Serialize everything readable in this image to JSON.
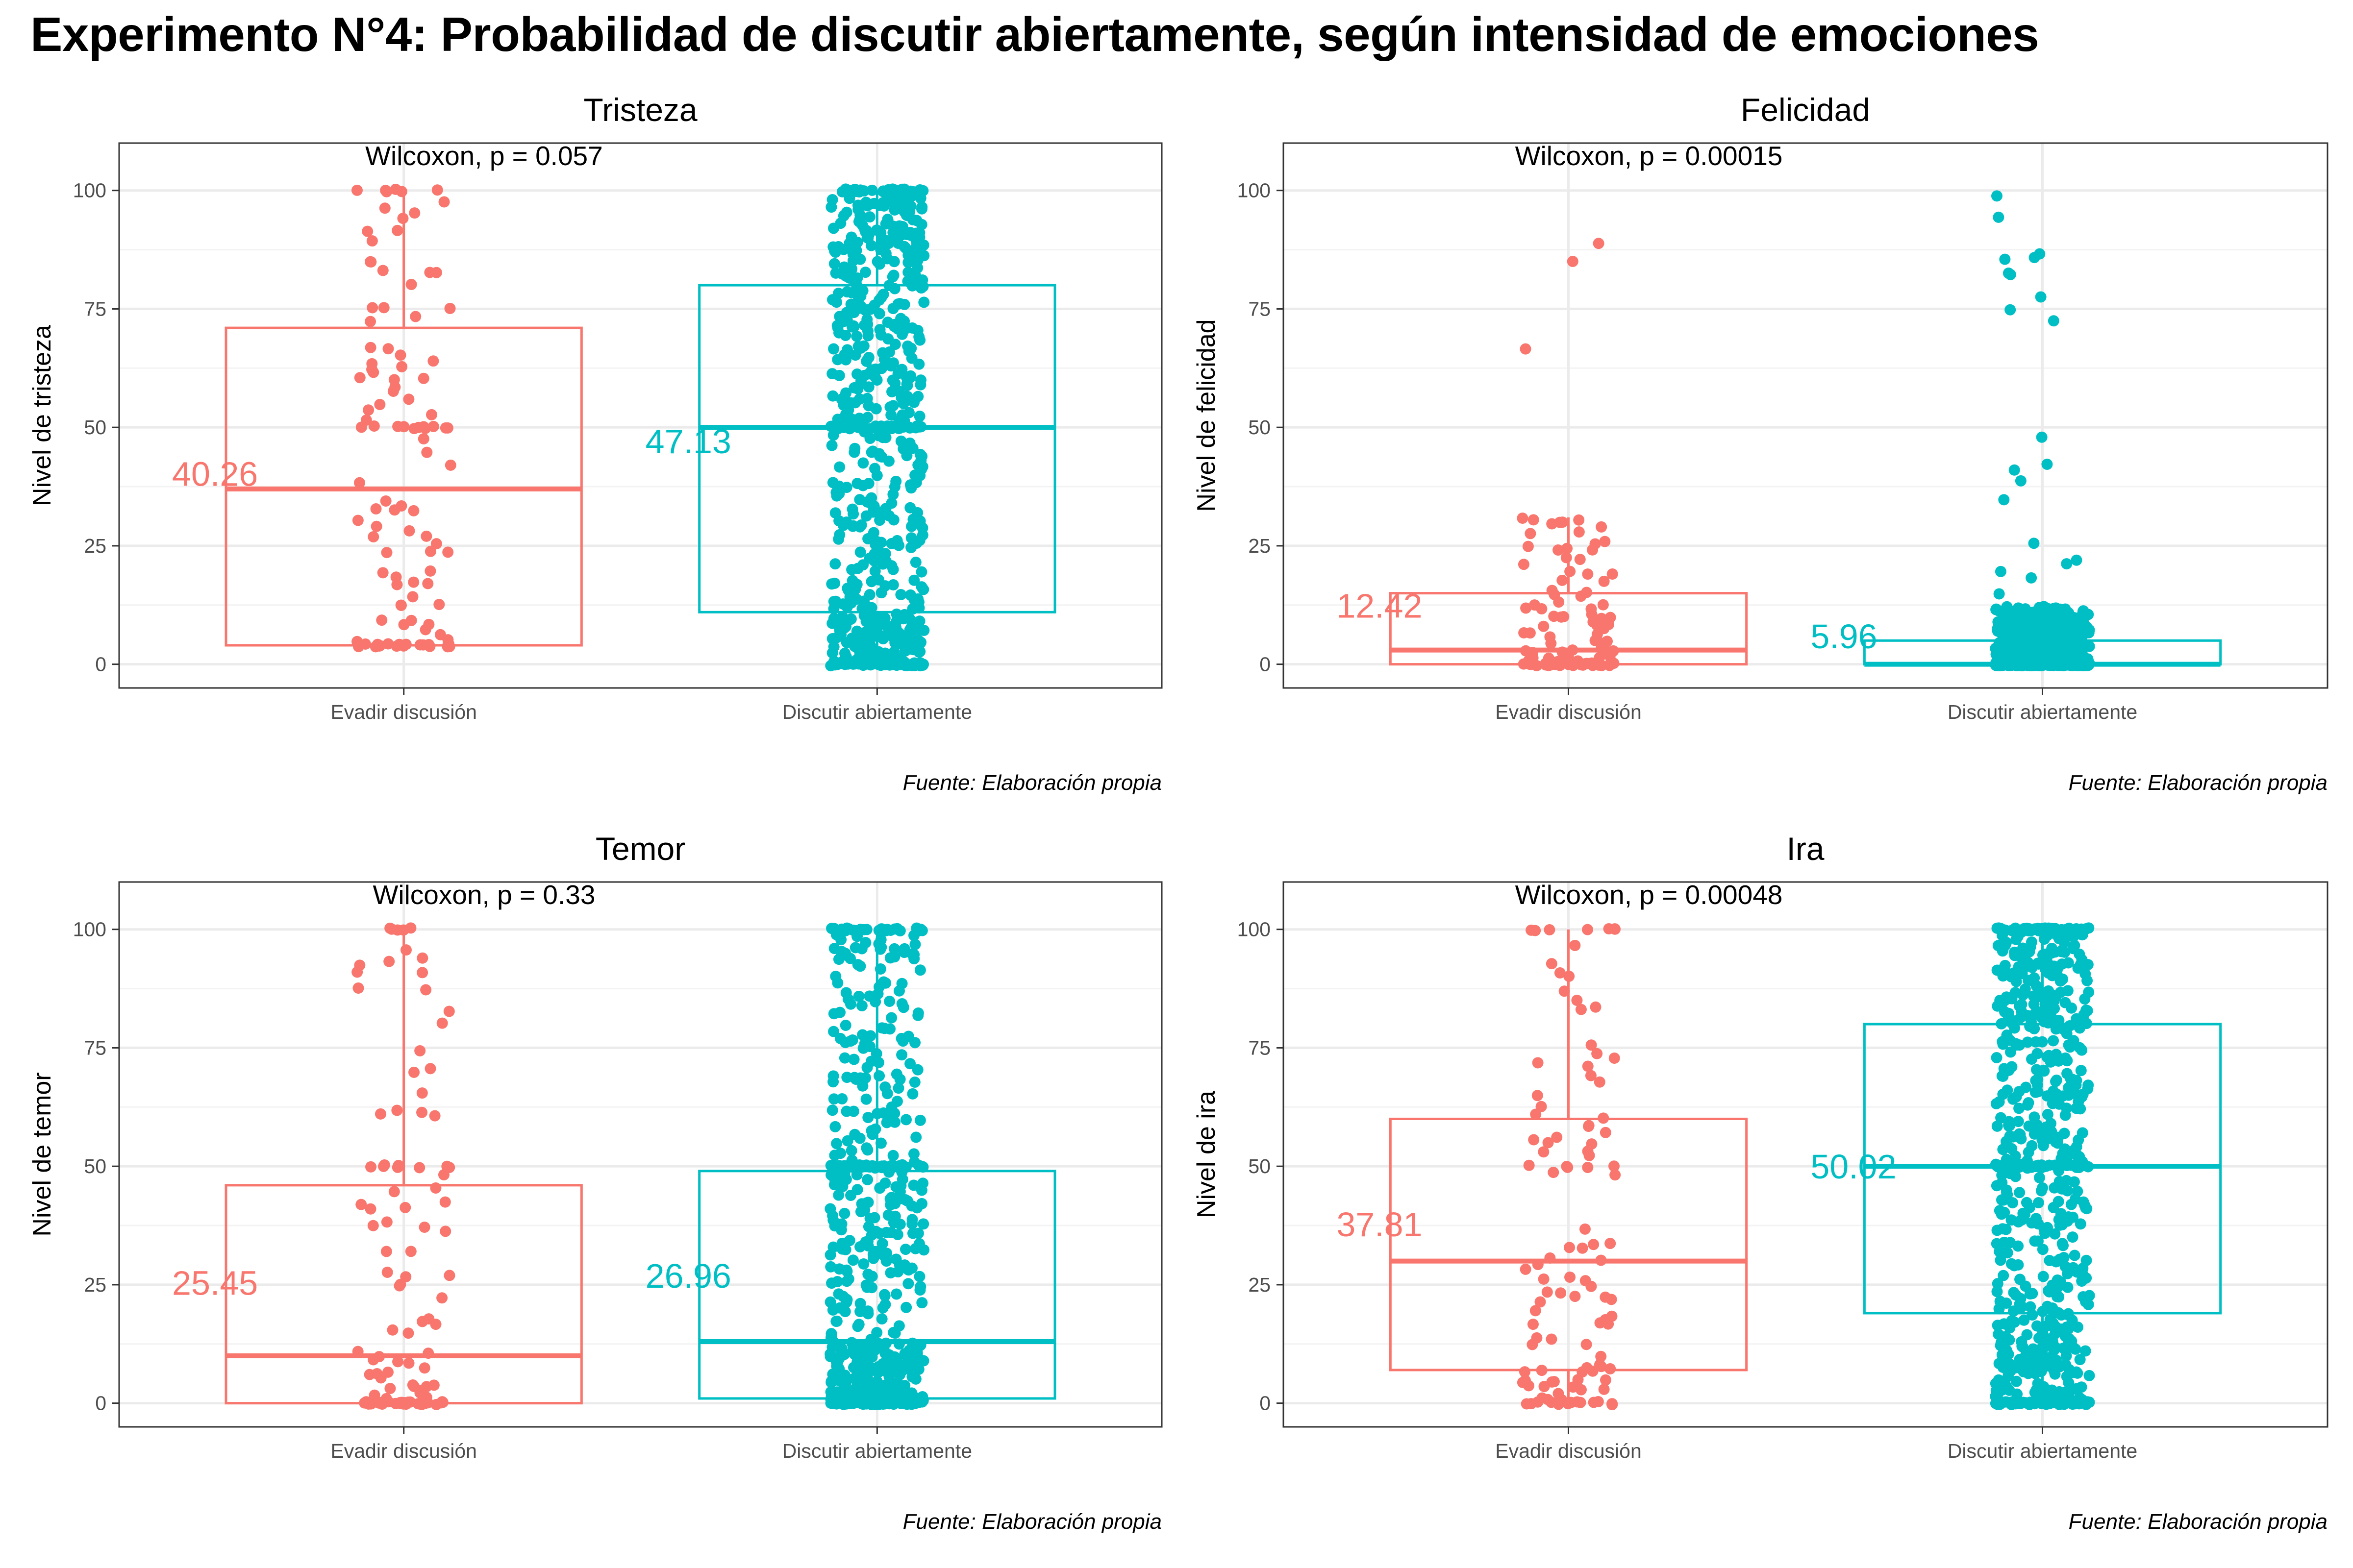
{
  "title": "Experimento N°4: Probabilidad de discutir abiertamente, según intensidad de emociones",
  "colors": {
    "evadir": "#F8766D",
    "discutir": "#00BFC4",
    "grid_major": "#EBEBEB",
    "grid_minor": "#F3F3F3",
    "panel_border": "#333333",
    "tick_text": "#4D4D4D"
  },
  "chart_data": [
    {
      "type": "boxplot",
      "title": "Tristeza",
      "ylabel": "Nivel de tristeza",
      "xlabel": "",
      "categories": [
        "Evadir discusión",
        "Discutir abiertamente"
      ],
      "ylim": [
        -5,
        110
      ],
      "yticks": [
        0,
        25,
        50,
        75,
        100
      ],
      "annotation": "Wilcoxon, p = 0.057",
      "caption": "Fuente: Elaboración propia",
      "series": [
        {
          "name": "Evadir discusión",
          "lower": 4,
          "q1": 4,
          "median": 37,
          "q3": 71,
          "upper": 100,
          "mean": 40.26,
          "mean_label": "40.26",
          "n_points": 110
        },
        {
          "name": "Discutir abiertamente",
          "lower": 0,
          "q1": 11,
          "median": 50,
          "q3": 80,
          "upper": 100,
          "mean": 47.13,
          "mean_label": "47.13",
          "n_points": 700
        }
      ]
    },
    {
      "type": "boxplot",
      "title": "Felicidad",
      "ylabel": "Nivel de felicidad",
      "xlabel": "",
      "categories": [
        "Evadir discusión",
        "Discutir abiertamente"
      ],
      "ylim": [
        -5,
        110
      ],
      "yticks": [
        0,
        25,
        50,
        75,
        100
      ],
      "annotation": "Wilcoxon, p = 0.00015",
      "caption": "Fuente: Elaboración propia",
      "series": [
        {
          "name": "Evadir discusión",
          "lower": 0,
          "q1": 0,
          "median": 3,
          "q3": 15,
          "upper": 31,
          "mean": 12.42,
          "mean_label": "12.42",
          "n_points": 110
        },
        {
          "name": "Discutir abiertamente",
          "lower": 0,
          "q1": 0,
          "median": 0,
          "q3": 5,
          "upper": 12,
          "mean": 5.96,
          "mean_label": "5.96",
          "n_points": 700
        }
      ]
    },
    {
      "type": "boxplot",
      "title": "Temor",
      "ylabel": "Nivel de temor",
      "xlabel": "",
      "categories": [
        "Evadir discusión",
        "Discutir abiertamente"
      ],
      "ylim": [
        -5,
        110
      ],
      "yticks": [
        0,
        25,
        50,
        75,
        100
      ],
      "annotation": "Wilcoxon, p = 0.33",
      "caption": "Fuente: Elaboración propia",
      "series": [
        {
          "name": "Evadir discusión",
          "lower": 0,
          "q1": 0,
          "median": 10,
          "q3": 46,
          "upper": 100,
          "mean": 25.45,
          "mean_label": "25.45",
          "n_points": 110
        },
        {
          "name": "Discutir abiertamente",
          "lower": 0,
          "q1": 1,
          "median": 13,
          "q3": 49,
          "upper": 100,
          "mean": 26.96,
          "mean_label": "26.96",
          "n_points": 700
        }
      ]
    },
    {
      "type": "boxplot",
      "title": "Ira",
      "ylabel": "Nivel de ira",
      "xlabel": "",
      "categories": [
        "Evadir discusión",
        "Discutir abiertamente"
      ],
      "ylim": [
        -5,
        110
      ],
      "yticks": [
        0,
        25,
        50,
        75,
        100
      ],
      "annotation": "Wilcoxon, p = 0.00048",
      "caption": "Fuente: Elaboración propia",
      "series": [
        {
          "name": "Evadir discusión",
          "lower": 0,
          "q1": 7,
          "median": 30,
          "q3": 60,
          "upper": 100,
          "mean": 37.81,
          "mean_label": "37.81",
          "n_points": 110
        },
        {
          "name": "Discutir abiertamente",
          "lower": 0,
          "q1": 19,
          "median": 50,
          "q3": 80,
          "upper": 100,
          "mean": 50.02,
          "mean_label": "50.02",
          "n_points": 700
        }
      ]
    }
  ]
}
